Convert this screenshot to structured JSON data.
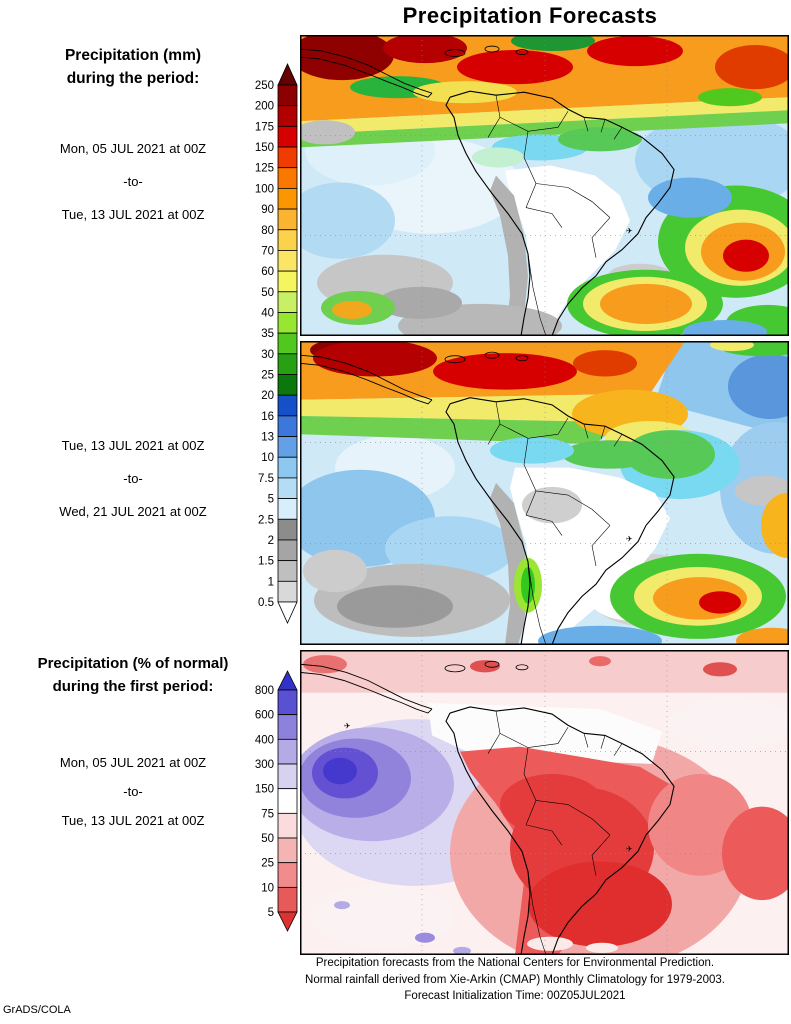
{
  "page": {
    "title": "Precipitation Forecasts",
    "credit": "GrADS/COLA"
  },
  "icons": {
    "plane": "✈"
  },
  "sections": {
    "mm": {
      "heading_line1": "Precipitation (mm)",
      "heading_line2": "during the period:",
      "period1": {
        "start": "Mon, 05 JUL 2021 at 00Z",
        "separator": "-to-",
        "end": "Tue, 13 JUL 2021 at 00Z"
      },
      "period2": {
        "start": "Tue, 13 JUL 2021 at 00Z",
        "separator": "-to-",
        "end": "Wed, 21 JUL 2021 at 00Z"
      }
    },
    "pct": {
      "heading_line1": "Precipitation (% of normal)",
      "heading_line2": "during the first period:",
      "period": {
        "start": "Mon, 05 JUL 2021 at 00Z",
        "separator": "-to-",
        "end": "Tue, 13 JUL 2021 at 00Z"
      }
    }
  },
  "legend_mm": {
    "tick_labels": [
      "250",
      "200",
      "175",
      "150",
      "125",
      "100",
      "90",
      "80",
      "70",
      "60",
      "50",
      "40",
      "35",
      "30",
      "25",
      "20",
      "16",
      "13",
      "10",
      "7.5",
      "5",
      "2.5",
      "2",
      "1.5",
      "1",
      "0.5"
    ],
    "colors_top_to_bottom": [
      "#650000",
      "#8b0000",
      "#b10000",
      "#d60000",
      "#f03c00",
      "#fa7800",
      "#fa9600",
      "#fab432",
      "#fad24b",
      "#fae664",
      "#f5f55f",
      "#c8f064",
      "#96e632",
      "#50c81e",
      "#28a014",
      "#0a780a",
      "#1450c8",
      "#3c78dc",
      "#64a0e6",
      "#8cc8f0",
      "#b4dcf5",
      "#d7eefb",
      "#8c8c8c",
      "#a5a5a5",
      "#bfbfbf",
      "#d9d9d9",
      "#ffffff"
    ]
  },
  "legend_pct": {
    "tick_labels": [
      "800",
      "600",
      "400",
      "300",
      "150",
      "75",
      "50",
      "25",
      "10",
      "5"
    ],
    "colors_top_to_bottom": [
      "#3232c8",
      "#5a50d2",
      "#8c82dc",
      "#b4aae6",
      "#d7d2f0",
      "#ffffff",
      "#fadcdc",
      "#f5b4b4",
      "#f08c8c",
      "#e65a5a",
      "#dc3232"
    ]
  },
  "footer": {
    "line1": "Precipitation forecasts from the National Centers for Environmental Prediction.",
    "line2": "Normal rainfall derived from Xie-Arkin (CMAP) Monthly Climatology for 1979-2003.",
    "line3": "Forecast Initialization Time: 00Z05JUL2021"
  }
}
